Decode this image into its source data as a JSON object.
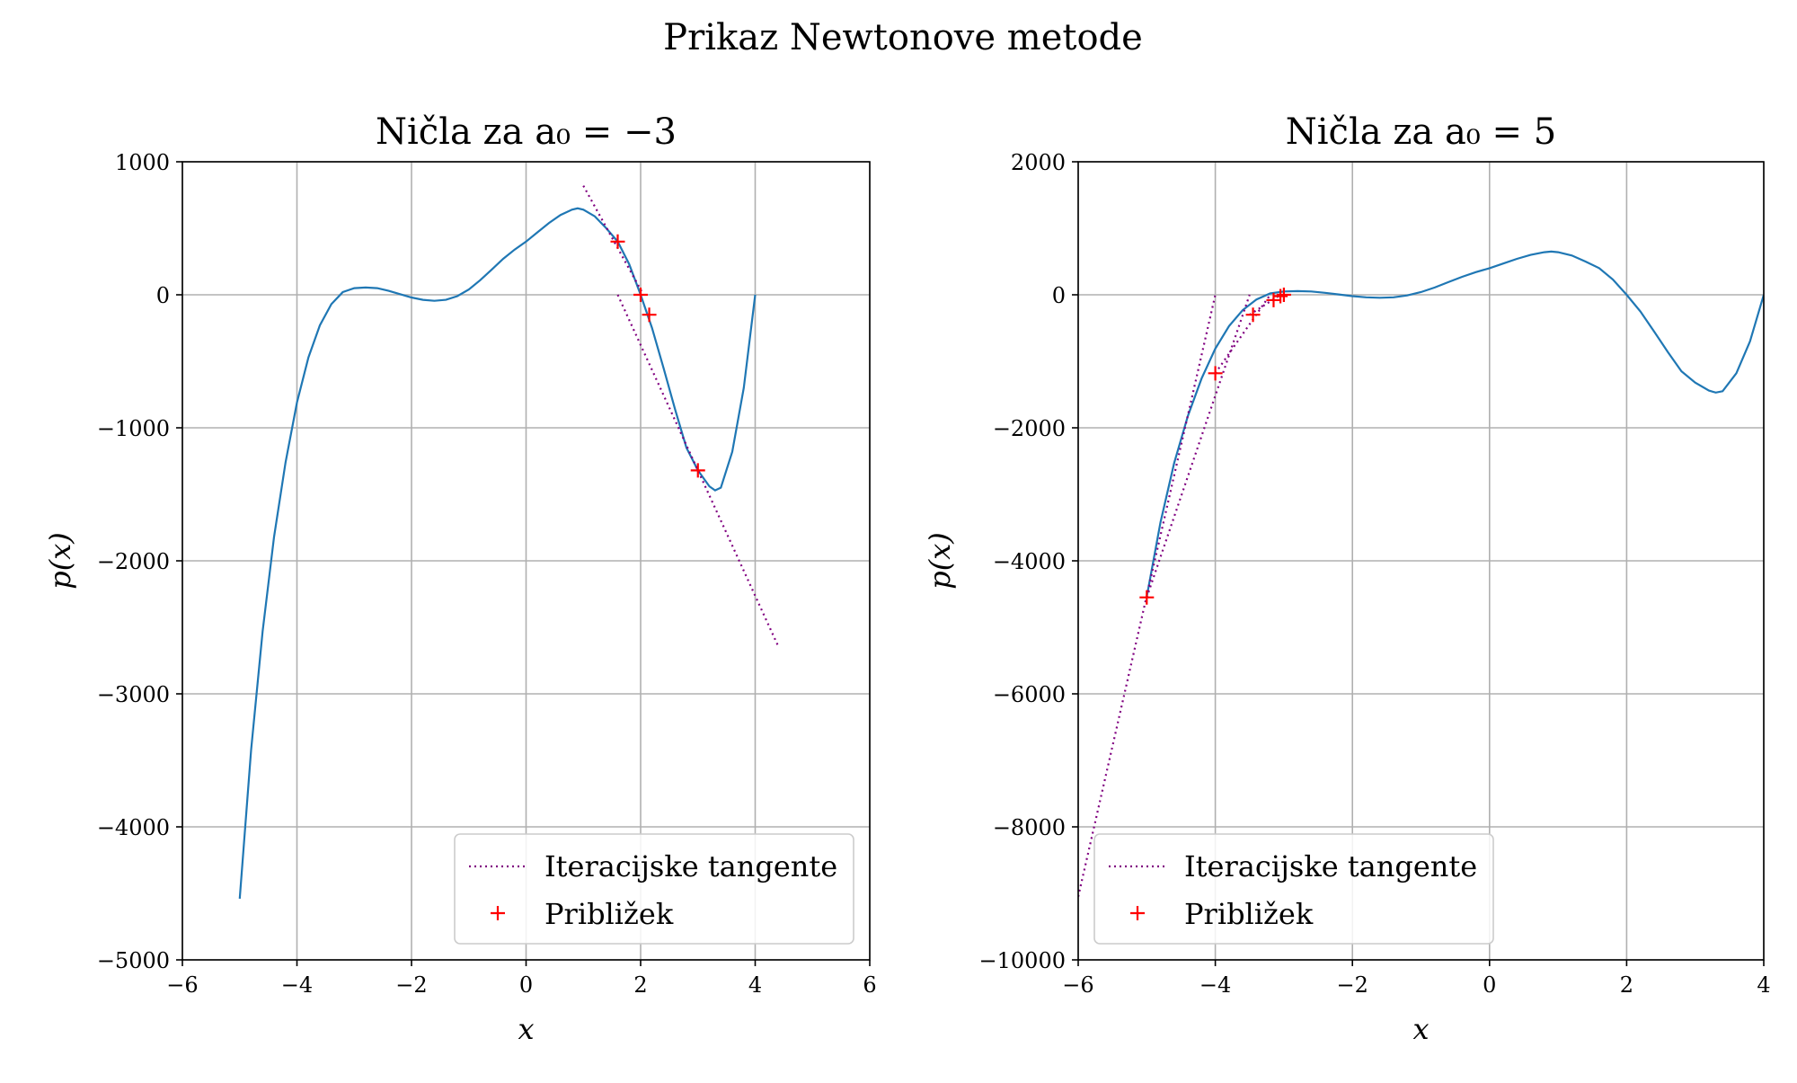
{
  "figure": {
    "suptitle": "Prikaz Newtonove metode"
  },
  "chart_data": [
    {
      "type": "line",
      "title": "Ničla za a₀ = −3",
      "xlabel": "x",
      "ylabel": "p(x)",
      "xlim": [
        -6,
        6
      ],
      "ylim": [
        -5000,
        1000
      ],
      "xticks": [
        -6,
        -4,
        -2,
        0,
        2,
        4,
        6
      ],
      "yticks": [
        -5000,
        -4000,
        -3000,
        -2000,
        -1000,
        0,
        1000
      ],
      "xtick_labels": [
        "−6",
        "−4",
        "−2",
        "0",
        "2",
        "4",
        "6"
      ],
      "ytick_labels": [
        "−5000",
        "−4000",
        "−3000",
        "−2000",
        "−1000",
        "0",
        "1000"
      ],
      "grid": true,
      "legend_position": "lower-right",
      "series": [
        {
          "kind": "curve",
          "color": "#1f77b4",
          "x": [
            -5,
            -4.8,
            -4.6,
            -4.4,
            -4.2,
            -4,
            -3.8,
            -3.6,
            -3.4,
            -3.2,
            -3,
            -2.8,
            -2.6,
            -2.4,
            -2.2,
            -2,
            -1.8,
            -1.6,
            -1.4,
            -1.2,
            -1,
            -0.8,
            -0.6,
            -0.4,
            -0.2,
            0,
            0.2,
            0.4,
            0.6,
            0.8,
            0.9,
            1,
            1.2,
            1.4,
            1.6,
            1.8,
            2,
            2.2,
            2.4,
            2.6,
            2.8,
            3,
            3.2,
            3.3,
            3.4,
            3.6,
            3.8,
            4
          ],
          "y": [
            -4540,
            -3420,
            -2530,
            -1820,
            -1260,
            -810,
            -470,
            -230,
            -70,
            20,
            50,
            55,
            50,
            30,
            5,
            -20,
            -38,
            -45,
            -38,
            -10,
            40,
            110,
            190,
            270,
            340,
            400,
            470,
            540,
            600,
            640,
            650,
            640,
            590,
            500,
            400,
            230,
            0,
            -250,
            -550,
            -860,
            -1150,
            -1320,
            -1440,
            -1470,
            -1450,
            -1180,
            -700,
            0
          ]
        },
        {
          "kind": "tangents",
          "name": "Iteracijske tangente",
          "color": "#800080",
          "segments": [
            [
              [
                1.0,
                820
              ],
              [
                2.05,
                0
              ]
            ],
            [
              [
                1.6,
                0
              ],
              [
                4.4,
                -2640
              ]
            ]
          ]
        },
        {
          "kind": "markers",
          "name": "Približek",
          "color": "#ff0000",
          "x": [
            3.0,
            1.6,
            2.0,
            2.15
          ],
          "y": [
            -1320,
            400,
            0,
            -150
          ]
        }
      ]
    },
    {
      "type": "line",
      "title": "Ničla za a₀ = 5",
      "xlabel": "x",
      "ylabel": "p(x)",
      "xlim": [
        -6,
        4
      ],
      "ylim": [
        -10000,
        2000
      ],
      "xticks": [
        -6,
        -4,
        -2,
        0,
        2,
        4
      ],
      "yticks": [
        -10000,
        -8000,
        -6000,
        -4000,
        -2000,
        0,
        2000
      ],
      "xtick_labels": [
        "−6",
        "−4",
        "−2",
        "0",
        "2",
        "4"
      ],
      "ytick_labels": [
        "−10000",
        "−8000",
        "−6000",
        "−4000",
        "−2000",
        "0",
        "2000"
      ],
      "grid": true,
      "legend_position": "lower-left",
      "series": [
        {
          "kind": "curve",
          "color": "#1f77b4",
          "x": [
            -5,
            -4.8,
            -4.6,
            -4.4,
            -4.2,
            -4,
            -3.8,
            -3.6,
            -3.4,
            -3.2,
            -3,
            -2.8,
            -2.6,
            -2.4,
            -2.2,
            -2,
            -1.8,
            -1.6,
            -1.4,
            -1.2,
            -1,
            -0.8,
            -0.6,
            -0.4,
            -0.2,
            0,
            0.2,
            0.4,
            0.6,
            0.8,
            0.9,
            1,
            1.2,
            1.4,
            1.6,
            1.8,
            2,
            2.2,
            2.4,
            2.6,
            2.8,
            3,
            3.2,
            3.3,
            3.4,
            3.6,
            3.8,
            4
          ],
          "y": [
            -4540,
            -3420,
            -2530,
            -1820,
            -1260,
            -810,
            -470,
            -230,
            -70,
            20,
            50,
            55,
            50,
            30,
            5,
            -20,
            -38,
            -45,
            -38,
            -10,
            40,
            110,
            190,
            270,
            340,
            400,
            470,
            540,
            600,
            640,
            650,
            640,
            590,
            500,
            400,
            230,
            0,
            -250,
            -550,
            -860,
            -1150,
            -1320,
            -1440,
            -1470,
            -1450,
            -1180,
            -700,
            0
          ]
        },
        {
          "kind": "tangents",
          "name": "Iteracijske tangente",
          "color": "#800080",
          "segments": [
            [
              [
                -6.0,
                -9050
              ],
              [
                -4.0,
                0
              ]
            ],
            [
              [
                -5.0,
                -4550
              ],
              [
                -3.5,
                0
              ]
            ],
            [
              [
                -4.0,
                -1180
              ],
              [
                -3.2,
                0
              ]
            ],
            [
              [
                -3.5,
                -300
              ],
              [
                -3.05,
                0
              ]
            ]
          ]
        },
        {
          "kind": "markers",
          "name": "Približek",
          "color": "#ff0000",
          "x": [
            -5.0,
            -4.0,
            -3.45,
            -3.15,
            -3.05,
            -3.0
          ],
          "y": [
            -4550,
            -1180,
            -300,
            -80,
            -20,
            0
          ]
        }
      ]
    }
  ]
}
